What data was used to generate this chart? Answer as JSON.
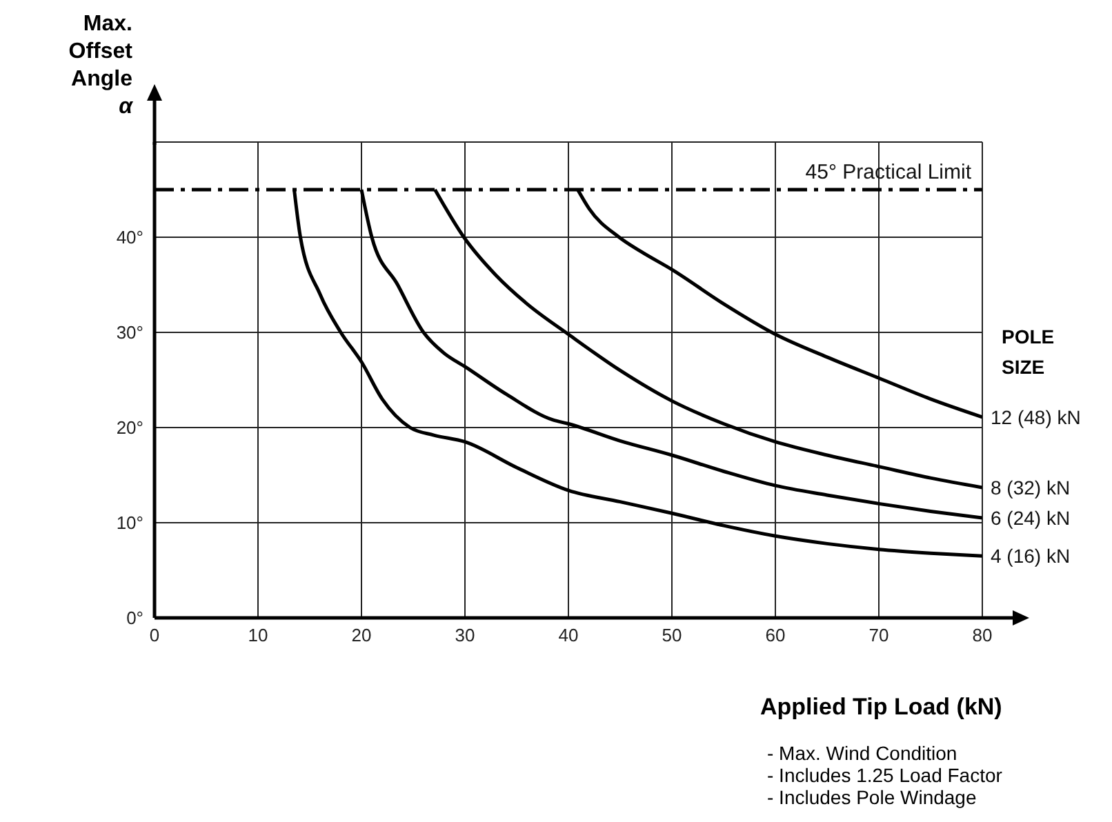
{
  "chart_data": {
    "type": "line",
    "ylabel": "Max. Offset Angle α",
    "xlabel": "Applied Tip Load (kN)",
    "legend_title": "POLE SIZE",
    "xlim": [
      0,
      80
    ],
    "xticks": [
      0,
      10,
      20,
      30,
      40,
      50,
      60,
      70,
      80
    ],
    "ylim": [
      0,
      50
    ],
    "yticks": [
      {
        "value": 0,
        "label": "0°"
      },
      {
        "value": 10,
        "label": "10°"
      },
      {
        "value": 20,
        "label": "20°"
      },
      {
        "value": 30,
        "label": "30°"
      },
      {
        "value": 40,
        "label": "40°"
      },
      {
        "value": 50,
        "label": null
      }
    ],
    "grid": true,
    "marker": "none",
    "line_style": "solid",
    "ref_lines": [
      {
        "axis": "y",
        "value": 45,
        "label": "45° Practical Limit",
        "color": "#000000",
        "line_style": "dashdot"
      }
    ],
    "series": [
      {
        "name": "4 (16) kN",
        "color": "#000000",
        "x": [
          13.5,
          14.1,
          16,
          18,
          20,
          22,
          24.7,
          27,
          30,
          35,
          40,
          45,
          50,
          55,
          60,
          65,
          70,
          75,
          80
        ],
        "values": [
          45,
          40,
          34,
          30,
          26.9,
          23,
          20,
          19.2,
          18.5,
          15.8,
          13.4,
          12.2,
          11,
          9.7,
          8.6,
          7.8,
          7.2,
          6.8,
          6.5
        ]
      },
      {
        "name": "6 (24) kN",
        "color": "#000000",
        "x": [
          20,
          21,
          23.5,
          26,
          28,
          30,
          34,
          38.5,
          40,
          45,
          50,
          55,
          60,
          65,
          70,
          75,
          80
        ],
        "values": [
          45,
          40,
          35,
          30,
          27.8,
          26.4,
          23.5,
          20.8,
          20.4,
          18.6,
          17.1,
          15.4,
          13.9,
          12.9,
          12,
          11.2,
          10.5
        ]
      },
      {
        "name": "8 (32) kN",
        "color": "#000000",
        "x": [
          27.1,
          29.9,
          33,
          36,
          40,
          45,
          50,
          55,
          60,
          65,
          70,
          75,
          80
        ],
        "values": [
          45,
          40,
          36,
          33,
          29.8,
          26,
          22.8,
          20.4,
          18.5,
          17.1,
          15.9,
          14.7,
          13.7
        ]
      },
      {
        "name": "12 (48) kN",
        "color": "#000000",
        "x": [
          40.9,
          42,
          44.9,
          47,
          50,
          55,
          60,
          65,
          70,
          75,
          80
        ],
        "values": [
          45,
          43,
          40,
          38.5,
          36.6,
          33,
          29.8,
          27.4,
          25.2,
          23,
          21.1
        ]
      }
    ],
    "annotations": [
      "- Max. Wind Condition",
      "- Includes 1.25 Load Factor",
      "- Includes Pole Windage"
    ]
  }
}
